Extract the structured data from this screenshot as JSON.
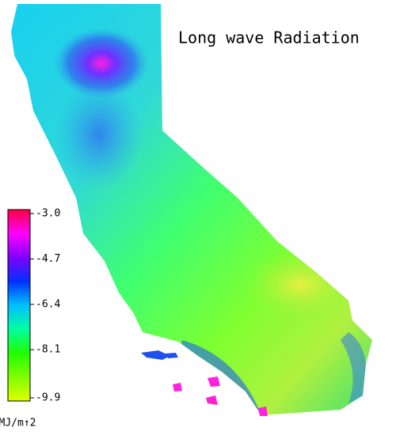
{
  "title": "Long wave Radiation",
  "colorbar": {
    "ticks": [
      {
        "value": -3.0,
        "label": "-3.0"
      },
      {
        "value": -4.7,
        "label": "-4.7"
      },
      {
        "value": -6.4,
        "label": "-6.4"
      },
      {
        "value": -8.1,
        "label": "-8.1"
      },
      {
        "value": -9.9,
        "label": "-9.9"
      }
    ],
    "colors": [
      "#ff0040",
      "#ff00ff",
      "#8000ff",
      "#0030ff",
      "#00c0ff",
      "#00ffa0",
      "#20ff00",
      "#80ff00",
      "#e0ff00"
    ],
    "unit": "MJ/m↑2"
  }
}
